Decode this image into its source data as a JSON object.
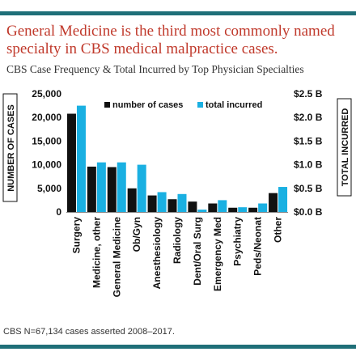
{
  "headline": "General Medicine is the third most commonly named specialty in CBS medical malpractice cases.",
  "subtitle": "CBS Case Frequency & Total Incurred by Top Physician Specialties",
  "footnote": "CBS N=67,134 cases asserted 2008–2017.",
  "colors": {
    "cases": "#111111",
    "incurred": "#1ab0e2",
    "rule": "#1f6f78",
    "headline": "#c0392b"
  },
  "chart_data": {
    "type": "bar",
    "categories": [
      "Surgery",
      "Medicine, other",
      "General Medicine",
      "Ob/Gyn",
      "Anesthesiology",
      "Radiology",
      "Dent/Oral Surg",
      "Emergency Med",
      "Psychiatry",
      "Peds/Neonat",
      "Other"
    ],
    "series": [
      {
        "name": "number of cases",
        "axis": "left",
        "values": [
          20800,
          9600,
          9500,
          5000,
          3500,
          2700,
          2200,
          1800,
          900,
          900,
          4000
        ]
      },
      {
        "name": "total incurred",
        "axis": "right",
        "values": [
          2.25,
          1.05,
          1.05,
          1.0,
          0.42,
          0.38,
          0.05,
          0.25,
          0.1,
          0.18,
          0.53
        ]
      }
    ],
    "ylabel": "NUMBER OF CASES",
    "y2label": "TOTAL INCURRED",
    "ylim": [
      0,
      25000
    ],
    "y2lim": [
      0,
      2.5
    ],
    "yticks": [
      "0",
      "5,000",
      "10,000",
      "15,000",
      "20,000",
      "25,000"
    ],
    "y2ticks": [
      "$0.0 B",
      "$0.5 B",
      "$1.0 B",
      "$1.5 B",
      "$2.0 B",
      "$2.5 B"
    ],
    "legend_position": "top-right",
    "grid": false
  }
}
